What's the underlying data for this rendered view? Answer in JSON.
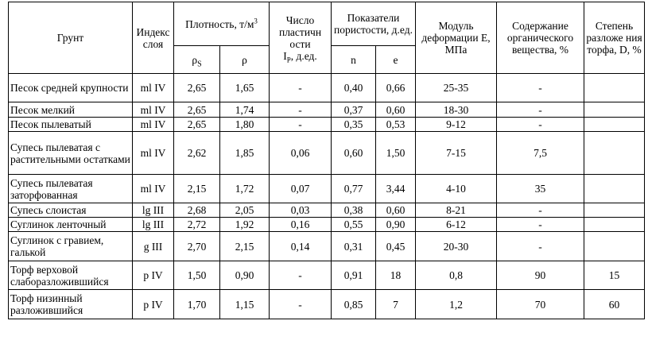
{
  "headers": {
    "soil": "Грунт",
    "layer_index": "Индекс слоя",
    "density": "Плотность, т/м",
    "density_unit_sup": "3",
    "rho_s": "ρ",
    "rho_s_sub": "S",
    "rho": "ρ",
    "plasticity": "Число пластичн ости",
    "plasticity_symbol": "I",
    "plasticity_symbol_sub": "P",
    "plasticity_unit": ", д.ед.",
    "porosity": "Показатели пористости, д.ед.",
    "porosity_n": "n",
    "porosity_e": "e",
    "modulus": "Модуль деформации Е, МПа",
    "organic": "Содержание органического вещества, %",
    "peat_decomp": "Степень разложе ния торфа, D, %"
  },
  "rows": [
    {
      "soil": "Песок средней крупности",
      "index": "ml IV",
      "rho_s": "2,65",
      "rho": "1,65",
      "ip": "-",
      "n": "0,40",
      "e": "0,66",
      "modulus": "25-35",
      "organic": "-",
      "decomp": ""
    },
    {
      "soil": "Песок мелкий",
      "index": "ml IV",
      "rho_s": "2,65",
      "rho": "1,74",
      "ip": "-",
      "n": "0,37",
      "e": "0,60",
      "modulus": "18-30",
      "organic": "-",
      "decomp": ""
    },
    {
      "soil": "Песок пылеватый",
      "index": "ml IV",
      "rho_s": "2,65",
      "rho": "1,80",
      "ip": "-",
      "n": "0,35",
      "e": "0,53",
      "modulus": "9-12",
      "organic": "-",
      "decomp": ""
    },
    {
      "soil": "Супесь пылеватая с растительными остатками",
      "index": "ml IV",
      "rho_s": "2,62",
      "rho": "1,85",
      "ip": "0,06",
      "n": "0,60",
      "e": "1,50",
      "modulus": "7-15",
      "organic": "7,5",
      "decomp": ""
    },
    {
      "soil": "Супесь пылеватая заторфованная",
      "index": "ml IV",
      "rho_s": "2,15",
      "rho": "1,72",
      "ip": "0,07",
      "n": "0,77",
      "e": "3,44",
      "modulus": "4-10",
      "organic": "35",
      "decomp": ""
    },
    {
      "soil": "Супесь слоистая",
      "index": "lg III",
      "rho_s": "2,68",
      "rho": "2,05",
      "ip": "0,03",
      "n": "0,38",
      "e": "0,60",
      "modulus": "8-21",
      "organic": "-",
      "decomp": ""
    },
    {
      "soil": "Суглинок ленточный",
      "index": "lg III",
      "rho_s": "2,72",
      "rho": "1,92",
      "ip": "0,16",
      "n": "0,55",
      "e": "0,90",
      "modulus": "6-12",
      "organic": "-",
      "decomp": ""
    },
    {
      "soil": "Суглинок с гравием, галькой",
      "index": "g III",
      "rho_s": "2,70",
      "rho": "2,15",
      "ip": "0,14",
      "n": "0,31",
      "e": "0,45",
      "modulus": "20-30",
      "organic": "-",
      "decomp": ""
    },
    {
      "soil": "Торф верховой слаборазложившийся",
      "index": "p IV",
      "rho_s": "1,50",
      "rho": "0,90",
      "ip": "-",
      "n": "0,91",
      "e": "18",
      "modulus": "0,8",
      "organic": "90",
      "decomp": "15"
    },
    {
      "soil": "Торф низинный разложившийся",
      "index": "p IV",
      "rho_s": "1,70",
      "rho": "1,15",
      "ip": "-",
      "n": "0,85",
      "e": "7",
      "modulus": "1,2",
      "organic": "70",
      "decomp": "60"
    }
  ]
}
